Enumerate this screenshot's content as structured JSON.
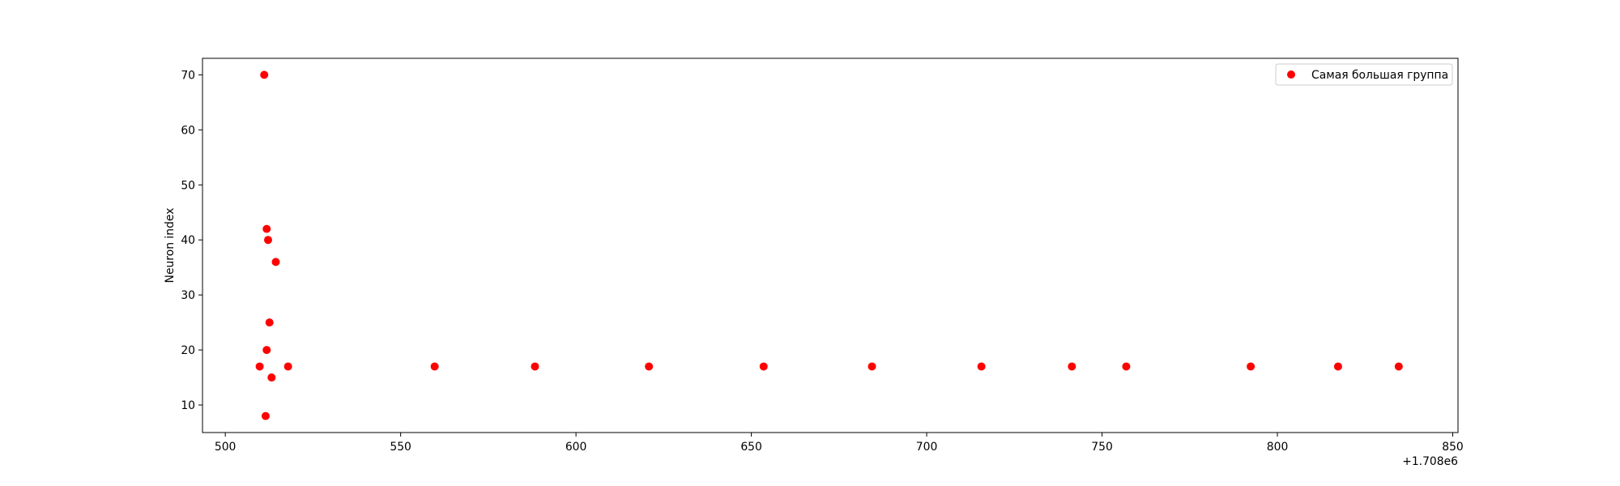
{
  "chart_data": {
    "type": "scatter",
    "title": "",
    "xlabel": "",
    "ylabel": "Neuron index",
    "x_offset_label": "+1.708e6",
    "xlim": [
      1708493.5,
      1708851.5
    ],
    "ylim": [
      5,
      73
    ],
    "x_ticks": [
      500,
      550,
      600,
      650,
      700,
      750,
      800,
      850
    ],
    "y_ticks": [
      10,
      20,
      30,
      40,
      50,
      60,
      70
    ],
    "grid": false,
    "legend_position": "top-right",
    "series": [
      {
        "name": "Самая большая группа",
        "color": "#ff0000",
        "points": [
          {
            "x": 1708509.8,
            "y": 17
          },
          {
            "x": 1708511.1,
            "y": 70
          },
          {
            "x": 1708511.5,
            "y": 8
          },
          {
            "x": 1708511.8,
            "y": 42
          },
          {
            "x": 1708511.8,
            "y": 20
          },
          {
            "x": 1708512.2,
            "y": 40
          },
          {
            "x": 1708512.6,
            "y": 25
          },
          {
            "x": 1708513.2,
            "y": 15
          },
          {
            "x": 1708514.4,
            "y": 36
          },
          {
            "x": 1708517.9,
            "y": 17
          },
          {
            "x": 1708559.7,
            "y": 17
          },
          {
            "x": 1708588.3,
            "y": 17
          },
          {
            "x": 1708620.8,
            "y": 17
          },
          {
            "x": 1708653.5,
            "y": 17
          },
          {
            "x": 1708684.4,
            "y": 17
          },
          {
            "x": 1708715.6,
            "y": 17
          },
          {
            "x": 1708741.4,
            "y": 17
          },
          {
            "x": 1708756.9,
            "y": 17
          },
          {
            "x": 1708792.4,
            "y": 17
          },
          {
            "x": 1708817.3,
            "y": 17
          },
          {
            "x": 1708834.6,
            "y": 17
          }
        ]
      }
    ]
  }
}
